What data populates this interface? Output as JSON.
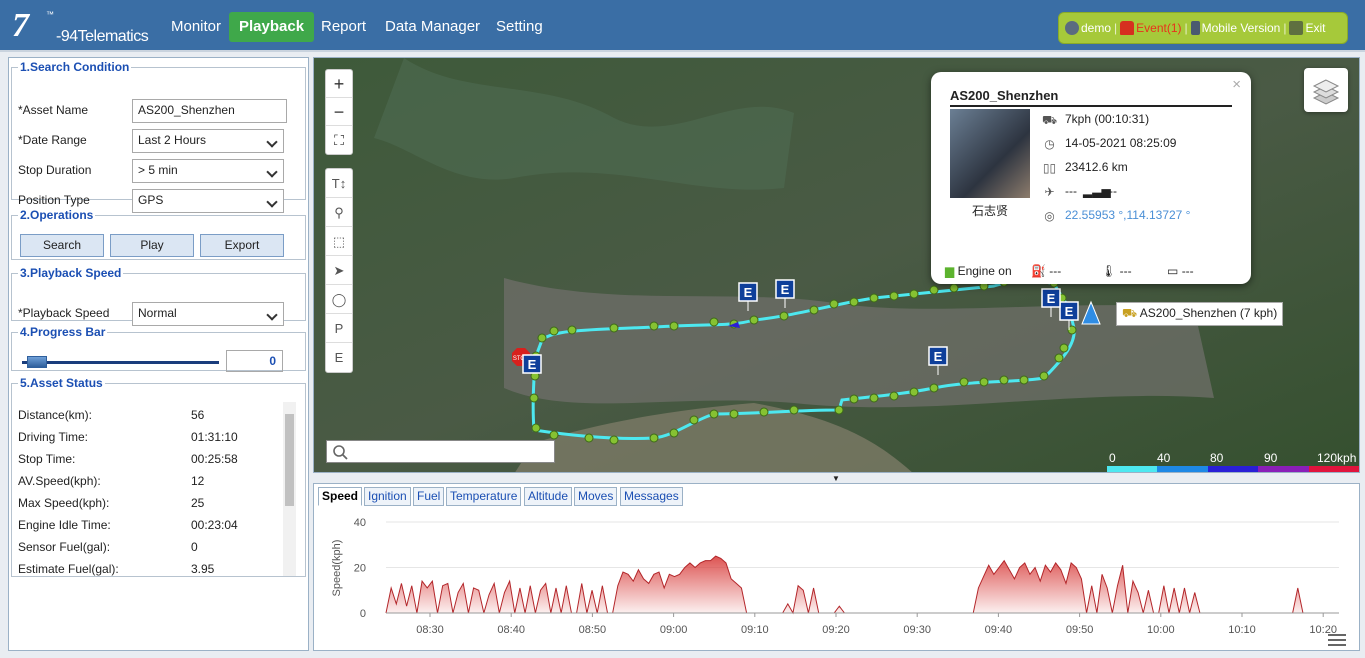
{
  "app": {
    "logo_big": "7",
    "logo_tm": "™",
    "logo_sub": "-94",
    "logo_text": "Telematics"
  },
  "nav": [
    "Monitor",
    "Playback",
    "Report",
    "Data Manager",
    "Setting"
  ],
  "user": {
    "name": "demo",
    "event": "Event(1)",
    "mobile": "Mobile Version",
    "exit": "Exit",
    "sep": "|"
  },
  "search": {
    "legend": "1.Search Condition",
    "asset_label": "*Asset Name",
    "asset_value": "AS200_Shenzhen",
    "date_label": "*Date Range",
    "date_value": "Last 2 Hours",
    "stop_label": "Stop Duration",
    "stop_value": "> 5 min",
    "pos_label": "Position Type",
    "pos_value": "GPS"
  },
  "operations": {
    "legend": "2.Operations",
    "search": "Search",
    "play": "Play",
    "export": "Export"
  },
  "speed": {
    "legend": "3.Playback Speed",
    "label": "*Playback Speed",
    "value": "Normal"
  },
  "progress": {
    "legend": "4.Progress Bar",
    "value": "0"
  },
  "status": {
    "legend": "5.Asset Status",
    "rows": [
      {
        "label": "Distance(km):",
        "value": "56"
      },
      {
        "label": "Driving Time:",
        "value": "01:31:10"
      },
      {
        "label": "Stop Time:",
        "value": "00:25:58"
      },
      {
        "label": "AV.Speed(kph):",
        "value": "12"
      },
      {
        "label": "Max Speed(kph):",
        "value": "25"
      },
      {
        "label": "Engine Idle Time:",
        "value": "00:23:04"
      },
      {
        "label": "Sensor Fuel(gal):",
        "value": "0"
      },
      {
        "label": "Estimate Fuel(gal):",
        "value": "3.95"
      }
    ]
  },
  "map": {
    "controls": {
      "zoom_in": "+",
      "zoom_out": "−",
      "fullscreen": "⛶"
    },
    "tools": [
      "T↕",
      "⚲",
      "⬚",
      "➤",
      "◯",
      "P",
      "E"
    ],
    "popup": {
      "title": "AS200_Shenzhen",
      "close": "×",
      "driver": "石志贤",
      "speed": "7kph (00:10:31)",
      "time": "14-05-2021 08:25:09",
      "odometer": "23412.6 km",
      "gsm": "---",
      "signal": "---",
      "coords": "22.55953 °,114.13727 °",
      "engine": "Engine on",
      "fuel": "---",
      "temp": "---",
      "battery": "---"
    },
    "point_label": "AS200_Shenzhen (7 kph)",
    "stop_marker": "STOP",
    "event_marker": "E",
    "speed_legend": [
      "0",
      "40",
      "80",
      "90",
      "120kph"
    ],
    "speed_colors": [
      "#4de8f0",
      "#1e88e5",
      "#2a1fd6",
      "#8a1fb8",
      "#e0143c"
    ]
  },
  "tabs": [
    "Speed",
    "Ignition",
    "Fuel",
    "Temperature",
    "Altitude",
    "Moves",
    "Messages"
  ],
  "chart_data": {
    "type": "area",
    "ylabel": "Speed(kph)",
    "ylim": [
      0,
      40
    ],
    "yticks": [
      "0",
      "20",
      "40"
    ],
    "xticks": [
      "08:30",
      "08:40",
      "08:50",
      "09:00",
      "09:10",
      "09:20",
      "09:30",
      "09:40",
      "09:50",
      "10:00",
      "10:10",
      "10:20"
    ],
    "x_start_minutes": 8.5,
    "x_step_per_tick": 10,
    "series": [
      {
        "values": [
          0,
          11,
          4,
          13,
          3,
          12,
          0,
          14,
          11,
          14,
          0,
          12,
          13,
          0,
          9,
          13,
          0,
          11,
          10,
          0,
          8,
          13,
          0,
          9,
          14,
          0,
          11,
          0,
          12,
          0,
          10,
          13,
          0,
          11,
          0,
          12,
          0,
          0,
          13,
          0,
          10,
          0,
          12,
          0,
          0,
          12,
          18,
          17,
          14,
          19,
          15,
          13,
          17,
          18,
          11,
          17,
          16,
          17,
          20,
          22,
          20,
          22,
          23,
          23,
          25,
          24,
          22,
          15,
          13,
          11,
          0,
          0,
          0,
          0,
          0,
          0,
          0,
          0,
          4,
          0,
          12,
          10,
          0,
          11,
          0,
          0,
          0,
          0,
          3,
          0,
          0,
          0,
          0,
          0,
          0,
          0,
          0,
          0,
          0,
          0,
          0,
          0,
          0,
          0,
          0,
          0,
          0,
          0,
          0,
          0,
          0,
          0,
          0,
          0,
          0,
          11,
          16,
          21,
          17,
          20,
          23,
          19,
          15,
          20,
          22,
          17,
          20,
          14,
          21,
          18,
          22,
          19,
          13,
          22,
          20,
          15,
          0,
          12,
          0,
          17,
          11,
          0,
          12,
          21,
          0,
          14,
          9,
          0,
          10,
          0,
          0,
          12,
          0,
          11,
          0,
          11,
          0,
          9,
          0,
          0,
          0,
          0,
          0,
          0,
          0,
          0,
          0,
          0,
          0,
          0,
          0,
          0,
          0,
          0,
          0,
          0,
          0,
          11,
          0,
          0,
          0,
          0,
          0,
          0,
          0,
          0
        ]
      }
    ],
    "fill_color": "#d9413f"
  }
}
